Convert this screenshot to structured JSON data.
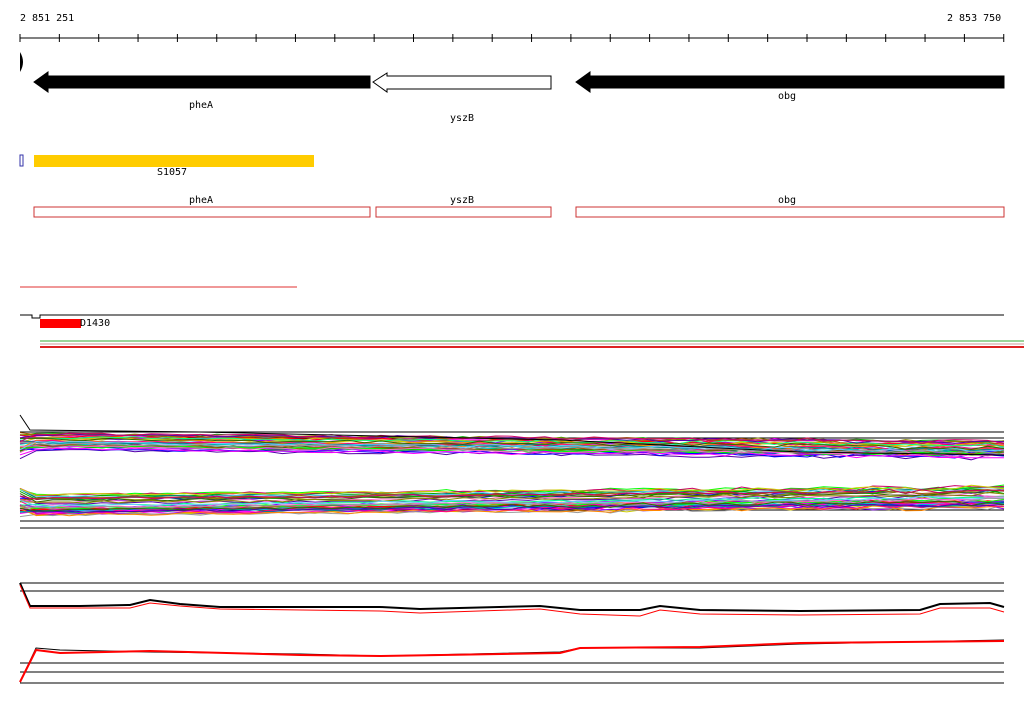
{
  "ruler": {
    "start_label": "2 851 251",
    "end_label": "2 853 750"
  },
  "genes": [
    {
      "name": "pheA",
      "strand": "minus",
      "fill": "#000000"
    },
    {
      "name": "yszB",
      "strand": "minus",
      "fill": "#ffffff"
    },
    {
      "name": "obg",
      "strand": "minus",
      "fill": "#000000"
    }
  ],
  "feature": {
    "label": "S1057",
    "color": "#ffcc00"
  },
  "cds_boxes": [
    {
      "name": "pheA",
      "color": "#cc3333"
    },
    {
      "name": "yszB",
      "color": "#cc3333"
    },
    {
      "name": "obg",
      "color": "#cc3333"
    }
  ],
  "small_feature": {
    "label": "D1430",
    "color": "#ff0000"
  },
  "colors": {
    "strand_line": "#000000",
    "highlight": "#ff0000"
  }
}
